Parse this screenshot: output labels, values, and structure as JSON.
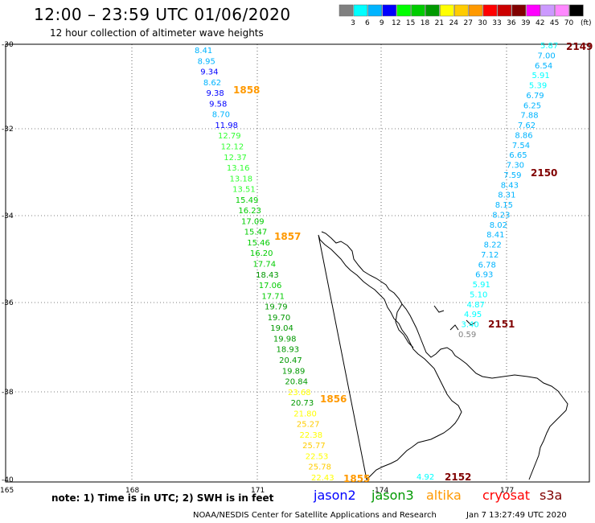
{
  "title": "12:00 – 23:59 UTC 01/06/2020",
  "subtitle": "12 hour collection of altimeter wave heights",
  "legend": {
    "unit": "(ft)",
    "swatches": [
      {
        "color": "#808080",
        "label": "3"
      },
      {
        "color": "#00ffff",
        "label": "6"
      },
      {
        "color": "#00b4ff",
        "label": "9"
      },
      {
        "color": "#0000ff",
        "label": "12"
      },
      {
        "color": "#00ff00",
        "label": "15"
      },
      {
        "color": "#00cc00",
        "label": "18"
      },
      {
        "color": "#009900",
        "label": "21"
      },
      {
        "color": "#ffff00",
        "label": "24"
      },
      {
        "color": "#ffcc00",
        "label": "27"
      },
      {
        "color": "#ff9900",
        "label": "30"
      },
      {
        "color": "#ff0000",
        "label": "33"
      },
      {
        "color": "#cc0000",
        "label": "36"
      },
      {
        "color": "#800000",
        "label": "39"
      },
      {
        "color": "#ff00ff",
        "label": "42"
      },
      {
        "color": "#cc99ff",
        "label": "45"
      },
      {
        "color": "#ff88ff",
        "label": "70"
      },
      {
        "color": "#000000",
        "label": ""
      }
    ]
  },
  "axes": {
    "lat_labels": [
      "-30",
      "-32",
      "-34",
      "-36",
      "-38",
      "-40"
    ],
    "lon_labels": [
      "165",
      "168",
      "171",
      "174",
      "177"
    ]
  },
  "passes": [
    {
      "time": "1858",
      "color": "#ff9900"
    },
    {
      "time": "1857",
      "color": "#ff9900"
    },
    {
      "time": "1856",
      "color": "#ff9900"
    },
    {
      "time": "1855",
      "color": "#ff9900"
    },
    {
      "time": "2149",
      "color": "#800000"
    },
    {
      "time": "2150",
      "color": "#800000"
    },
    {
      "time": "2151",
      "color": "#800000"
    },
    {
      "time": "2152",
      "color": "#800000"
    }
  ],
  "track_west": [
    {
      "v": "8.41",
      "c": "#00b4ff"
    },
    {
      "v": "8.95",
      "c": "#00b4ff"
    },
    {
      "v": "9.34",
      "c": "#0000ff"
    },
    {
      "v": "8.62",
      "c": "#00b4ff"
    },
    {
      "v": "9.38",
      "c": "#0000ff"
    },
    {
      "v": "9.58",
      "c": "#0000ff"
    },
    {
      "v": "8.70",
      "c": "#00b4ff"
    },
    {
      "v": "11.98",
      "c": "#0000ff"
    },
    {
      "v": "12.79",
      "c": "#33ff33"
    },
    {
      "v": "12.12",
      "c": "#33ff33"
    },
    {
      "v": "12.37",
      "c": "#33ff33"
    },
    {
      "v": "13.16",
      "c": "#33ff33"
    },
    {
      "v": "13.18",
      "c": "#33ff33"
    },
    {
      "v": "13.51",
      "c": "#33ff33"
    },
    {
      "v": "15.49",
      "c": "#00cc00"
    },
    {
      "v": "16.23",
      "c": "#00cc00"
    },
    {
      "v": "17.09",
      "c": "#00cc00"
    },
    {
      "v": "15.47",
      "c": "#00cc00"
    },
    {
      "v": "15.46",
      "c": "#00cc00"
    },
    {
      "v": "16.20",
      "c": "#00cc00"
    },
    {
      "v": "17.74",
      "c": "#00cc00"
    },
    {
      "v": "18.43",
      "c": "#009900"
    },
    {
      "v": "17.06",
      "c": "#00cc00"
    },
    {
      "v": "17.71",
      "c": "#00cc00"
    },
    {
      "v": "19.79",
      "c": "#009900"
    },
    {
      "v": "19.70",
      "c": "#009900"
    },
    {
      "v": "19.04",
      "c": "#009900"
    },
    {
      "v": "19.98",
      "c": "#009900"
    },
    {
      "v": "18.93",
      "c": "#009900"
    },
    {
      "v": "20.47",
      "c": "#009900"
    },
    {
      "v": "19.89",
      "c": "#009900"
    },
    {
      "v": "20.84",
      "c": "#009900"
    },
    {
      "v": "23.68",
      "c": "#ffff00"
    },
    {
      "v": "20.73",
      "c": "#009900"
    },
    {
      "v": "21.80",
      "c": "#ffff00"
    },
    {
      "v": "25.27",
      "c": "#ffcc00"
    },
    {
      "v": "22.38",
      "c": "#ffff00"
    },
    {
      "v": "25.77",
      "c": "#ffcc00"
    },
    {
      "v": "22.53",
      "c": "#ffff00"
    },
    {
      "v": "25.78",
      "c": "#ffcc00"
    },
    {
      "v": "22.43",
      "c": "#ffff00"
    }
  ],
  "track_east": [
    {
      "v": "5.87",
      "c": "#00ffff"
    },
    {
      "v": "7.00",
      "c": "#00b4ff"
    },
    {
      "v": "6.54",
      "c": "#00b4ff"
    },
    {
      "v": "5.91",
      "c": "#00ffff"
    },
    {
      "v": "5.39",
      "c": "#00ffff"
    },
    {
      "v": "6.79",
      "c": "#00b4ff"
    },
    {
      "v": "6.25",
      "c": "#00b4ff"
    },
    {
      "v": "7.88",
      "c": "#00b4ff"
    },
    {
      "v": "7.62",
      "c": "#00b4ff"
    },
    {
      "v": "8.86",
      "c": "#00b4ff"
    },
    {
      "v": "7.54",
      "c": "#00b4ff"
    },
    {
      "v": "6.65",
      "c": "#00b4ff"
    },
    {
      "v": "7.30",
      "c": "#00b4ff"
    },
    {
      "v": "7.59",
      "c": "#00b4ff"
    },
    {
      "v": "8.43",
      "c": "#00b4ff"
    },
    {
      "v": "8.31",
      "c": "#00b4ff"
    },
    {
      "v": "8.15",
      "c": "#00b4ff"
    },
    {
      "v": "8.23",
      "c": "#00b4ff"
    },
    {
      "v": "8.02",
      "c": "#00b4ff"
    },
    {
      "v": "8.41",
      "c": "#00b4ff"
    },
    {
      "v": "8.22",
      "c": "#00b4ff"
    },
    {
      "v": "7.12",
      "c": "#00b4ff"
    },
    {
      "v": "6.78",
      "c": "#00b4ff"
    },
    {
      "v": "6.93",
      "c": "#00b4ff"
    },
    {
      "v": "5.91",
      "c": "#00ffff"
    },
    {
      "v": "5.10",
      "c": "#00ffff"
    },
    {
      "v": "4.87",
      "c": "#00ffff"
    },
    {
      "v": "4.95",
      "c": "#00ffff"
    },
    {
      "v": "3.40",
      "c": "#00ffff"
    },
    {
      "v": "0.59",
      "c": "#808080"
    }
  ],
  "south_value": {
    "v": "4.92",
    "c": "#00ffff"
  },
  "note": "note:  1) Time is in UTC;  2) SWH is in feet",
  "satellites": [
    {
      "name": "jason2",
      "color": "#0000ff"
    },
    {
      "name": "jason3",
      "color": "#009900"
    },
    {
      "name": "altika",
      "color": "#ff9900"
    },
    {
      "name": "cryosat",
      "color": "#ff0000"
    },
    {
      "name": "s3a",
      "color": "#800000"
    }
  ],
  "credit": "NOAA/NESDIS Center for Satellite Applications and Research",
  "timestamp": "Jan  7 13:27:49 UTC 2020"
}
